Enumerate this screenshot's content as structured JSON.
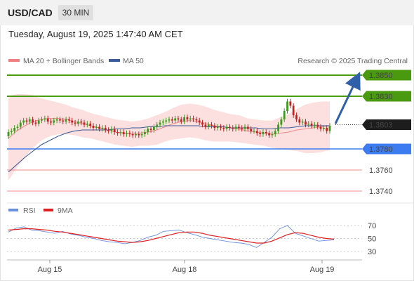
{
  "header": {
    "symbol": "USD/CAD",
    "timeframe": "30 MIN",
    "timestamp": "Tuesday, August 19, 2025 1:47:40 AM CET"
  },
  "legend": {
    "ma20": {
      "label": "MA 20 + Bollinger Bands",
      "color": "#f08080"
    },
    "ma50": {
      "label": "MA 50",
      "color": "#3a5a9a"
    },
    "rsi": {
      "label": "RSI",
      "color": "#6a8fdf"
    },
    "ma9": {
      "label": "9MA",
      "color": "#e02020"
    }
  },
  "credit": "Research © 2025 Trading Central",
  "colors": {
    "resistance": "#4a9a10",
    "pivot": "#3d7bf0",
    "support": "#f28c8c",
    "candle_up": "#3b9a1a",
    "candle_down": "#c22222",
    "arrow": "#2e5fa8"
  },
  "chart_data": [
    {
      "type": "line",
      "title": "",
      "x_ticks": [
        "Aug 15",
        "Aug 18",
        "Aug 19"
      ],
      "y_range": [
        1.371,
        1.387
      ],
      "levels": [
        {
          "value": "1.3850",
          "kind": "resistance"
        },
        {
          "value": "1.3830",
          "kind": "resistance"
        },
        {
          "value": "1.3803",
          "kind": "current"
        },
        {
          "value": "1.3780",
          "kind": "pivot"
        },
        {
          "value": "1.3760",
          "kind": "support"
        },
        {
          "value": "1.3740",
          "kind": "support"
        }
      ],
      "projection": {
        "from": 1.3803,
        "to": 1.385,
        "direction": "up"
      },
      "series": [
        {
          "name": "MA 20 + Bollinger Bands",
          "values": [
            1.379,
            1.3797,
            1.3802,
            1.3806,
            1.3808,
            1.3809,
            1.3809,
            1.3808,
            1.3806,
            1.3804,
            1.3802,
            1.38,
            1.3798,
            1.3796,
            1.3795,
            1.3794,
            1.3795,
            1.3796,
            1.3798,
            1.3801,
            1.3804,
            1.3806,
            1.3807,
            1.3806,
            1.3804,
            1.3802,
            1.3801,
            1.38,
            1.3799,
            1.3797,
            1.3796,
            1.3795,
            1.3794,
            1.3795,
            1.3796,
            1.3798,
            1.3799,
            1.38,
            1.3801,
            1.3802
          ]
        },
        {
          "name": "MA 50",
          "values": [
            1.3758,
            1.3765,
            1.3772,
            1.3778,
            1.3784,
            1.3788,
            1.3792,
            1.3795,
            1.3797,
            1.3798,
            1.3798,
            1.3798,
            1.3798,
            1.3799,
            1.3799,
            1.38,
            1.38,
            1.3801,
            1.3801,
            1.3802,
            1.3802,
            1.3802,
            1.3802,
            1.3802,
            1.3801,
            1.3801,
            1.3801,
            1.38,
            1.38,
            1.38,
            1.38,
            1.3799,
            1.3799,
            1.38,
            1.38,
            1.3801,
            1.3802,
            1.3802,
            1.3802,
            1.3802
          ]
        }
      ]
    },
    {
      "type": "line",
      "title": "",
      "y_ticks": [
        "70",
        "50",
        "30"
      ],
      "y_range": [
        20,
        80
      ],
      "series": [
        {
          "name": "RSI",
          "values": [
            60,
            66,
            68,
            63,
            62,
            60,
            58,
            61,
            57,
            55,
            52,
            50,
            47,
            45,
            44,
            42,
            44,
            47,
            52,
            55,
            61,
            62,
            63,
            59,
            56,
            52,
            50,
            48,
            46,
            44,
            43,
            41,
            36,
            44,
            52,
            65,
            70,
            58,
            54,
            50,
            46,
            47,
            48
          ]
        },
        {
          "name": "9MA",
          "values": [
            63,
            64,
            65,
            65,
            64,
            63,
            61,
            60,
            58,
            56,
            54,
            52,
            50,
            48,
            46,
            45,
            44,
            45,
            47,
            50,
            53,
            56,
            59,
            60,
            60,
            58,
            55,
            53,
            51,
            49,
            47,
            45,
            43,
            43,
            46,
            51,
            56,
            59,
            58,
            55,
            52,
            50,
            49
          ]
        }
      ]
    }
  ]
}
